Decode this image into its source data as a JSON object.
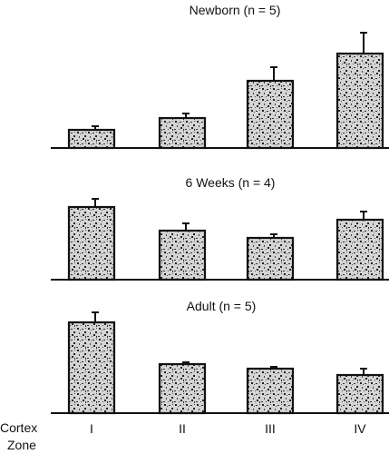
{
  "chart_data": [
    {
      "type": "bar",
      "title": "Newborn (n = 5)",
      "categories": [
        "I",
        "II",
        "III",
        "IV"
      ],
      "values": [
        2.0,
        3.3,
        7.4,
        10.4
      ],
      "errors": [
        0.4,
        0.5,
        1.5,
        2.3
      ],
      "ylim": [
        0,
        13.5
      ]
    },
    {
      "type": "bar",
      "title": "6 Weeks (n = 4)",
      "categories": [
        "I",
        "II",
        "III",
        "IV"
      ],
      "values": [
        8.0,
        5.4,
        4.6,
        6.6
      ],
      "errors": [
        0.9,
        0.8,
        0.4,
        0.9
      ],
      "ylim": [
        0,
        13.5
      ]
    },
    {
      "type": "bar",
      "title": "Adult (n = 5)",
      "categories": [
        "I",
        "II",
        "III",
        "IV"
      ],
      "values": [
        10.0,
        5.4,
        4.9,
        4.2
      ],
      "errors": [
        1.1,
        0.2,
        0.2,
        0.7
      ],
      "ylim": [
        0,
        13.5
      ]
    }
  ],
  "xaxis": {
    "caption_line1": "Cortex",
    "caption_line2": "Zone",
    "tick_labels": [
      "I",
      "II",
      "III",
      "IV"
    ]
  },
  "style": {
    "bar_fill": "#d8d8d8",
    "bar_stroke": "#111111"
  }
}
